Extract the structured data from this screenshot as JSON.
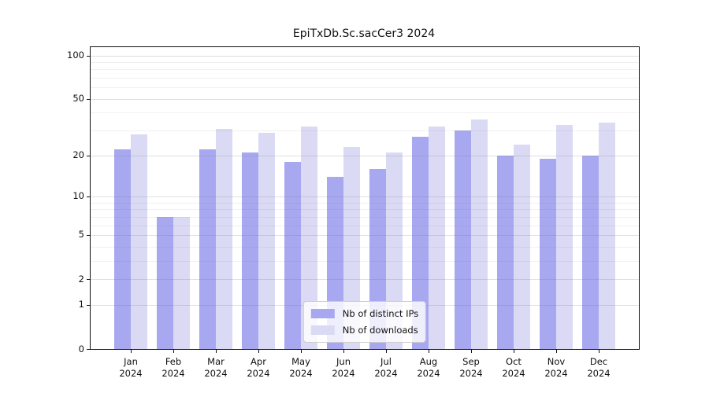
{
  "title": "EpiTxDb.Sc.sacCer3 2024",
  "chart_data": {
    "type": "bar",
    "title": "EpiTxDb.Sc.sacCer3 2024",
    "categories": [
      "Jan 2024",
      "Feb 2024",
      "Mar 2024",
      "Apr 2024",
      "May 2024",
      "Jun 2024",
      "Jul 2024",
      "Aug 2024",
      "Sep 2024",
      "Oct 2024",
      "Nov 2024",
      "Dec 2024"
    ],
    "series": [
      {
        "name": "Nb of distinct IPs",
        "color": "#a8a8f0",
        "values": [
          22,
          7,
          22,
          21,
          18,
          14,
          16,
          27,
          30,
          20,
          19,
          20
        ]
      },
      {
        "name": "Nb of downloads",
        "color": "#dadaf5",
        "values": [
          28,
          7,
          31,
          29,
          32,
          23,
          21,
          32,
          36,
          24,
          33,
          34
        ]
      }
    ],
    "xlabel": "",
    "ylabel": "",
    "yscale": "log1p",
    "ylim": [
      0,
      114
    ],
    "yticks": [
      0,
      1,
      2,
      5,
      10,
      20,
      50,
      100
    ],
    "minor_yticks": [
      3,
      4,
      6,
      7,
      8,
      9,
      30,
      40,
      60,
      70,
      80,
      90
    ],
    "grid": true,
    "legend_position": "lower center",
    "axis_color": "#111111",
    "background_color": "#ffffff"
  }
}
